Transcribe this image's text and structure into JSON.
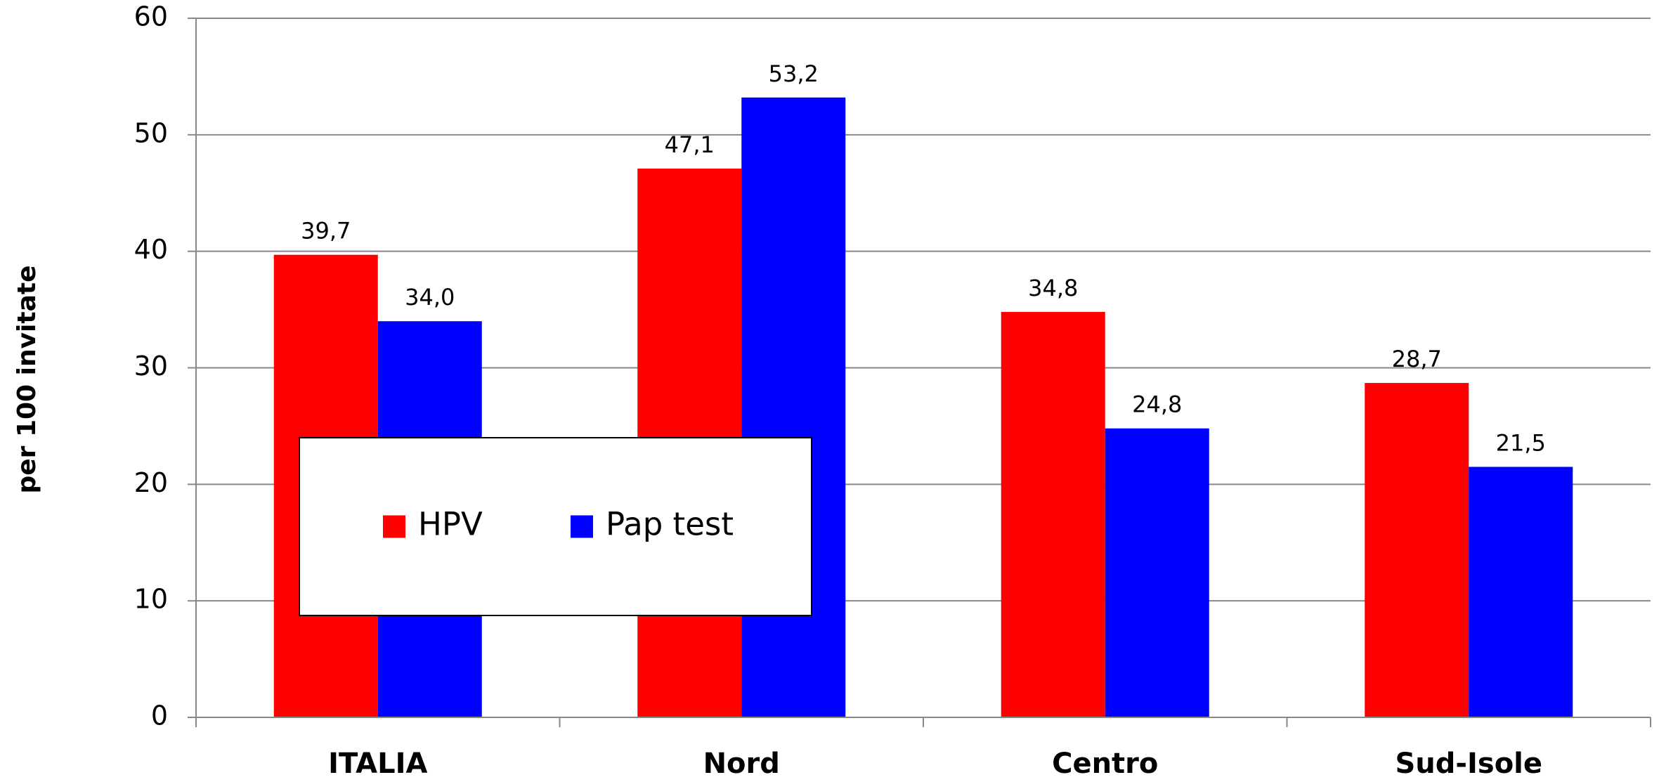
{
  "chart_data": {
    "type": "bar",
    "y_label": "per 100 invitate",
    "categories": [
      "ITALIA",
      "Nord",
      "Centro",
      "Sud-Isole"
    ],
    "series": [
      {
        "name": "HPV",
        "color": "#ff0000",
        "values": [
          39.7,
          47.1,
          34.8,
          28.7
        ],
        "value_labels": [
          "39,7",
          "47,1",
          "34,8",
          "28,7"
        ]
      },
      {
        "name": "Pap test",
        "color": "#0000ff",
        "values": [
          34.0,
          53.2,
          24.8,
          21.5
        ],
        "value_labels": [
          "34,0",
          "53,2",
          "24,8",
          "21,5"
        ]
      }
    ],
    "ylim": [
      0,
      60
    ],
    "yticks": [
      0,
      10,
      20,
      30,
      40,
      50,
      60
    ],
    "grid": true,
    "legend": "center-left"
  }
}
